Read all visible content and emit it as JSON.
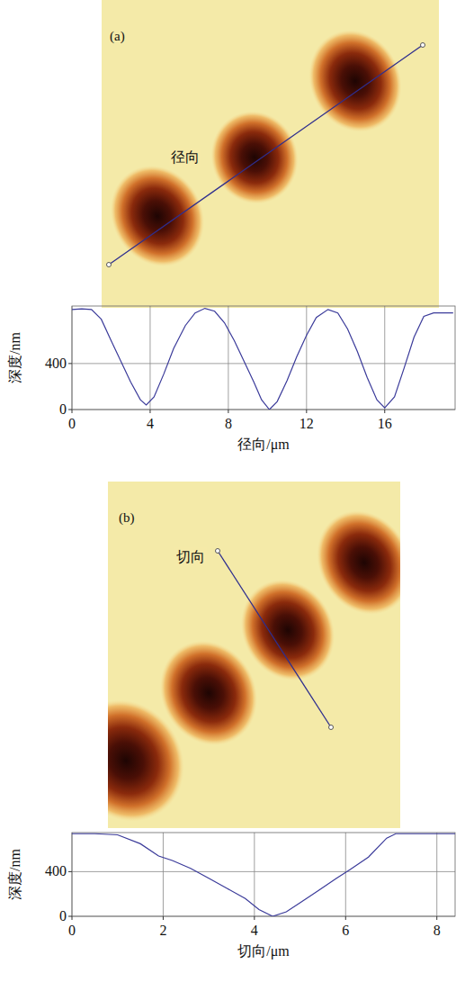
{
  "chart_data": [
    {
      "type": "line",
      "panel": "(a)",
      "annotation": "径向",
      "x_label": "径向/μm",
      "y_label": "深度/nm",
      "x": [
        0,
        0.5,
        1,
        1.5,
        2,
        2.5,
        3,
        3.5,
        3.8,
        4.2,
        4.7,
        5.2,
        5.8,
        6.3,
        6.8,
        7.3,
        7.8,
        8.3,
        8.8,
        9.3,
        9.7,
        10.1,
        10.5,
        11,
        11.5,
        12,
        12.5,
        13.1,
        13.6,
        14.1,
        14.6,
        15.1,
        15.6,
        16,
        16.5,
        17,
        17.5,
        18,
        18.5,
        19,
        19.5
      ],
      "values": [
        870,
        875,
        870,
        785,
        600,
        420,
        240,
        85,
        40,
        110,
        310,
        530,
        730,
        840,
        880,
        855,
        755,
        600,
        420,
        240,
        85,
        0,
        70,
        250,
        460,
        645,
        800,
        870,
        840,
        700,
        505,
        280,
        85,
        15,
        110,
        365,
        630,
        810,
        840,
        840,
        840
      ],
      "color": "#3b3b9a",
      "xlim": [
        0,
        19.6
      ],
      "ylim": [
        0,
        900
      ],
      "xticks": [
        0,
        4,
        8,
        12,
        16
      ],
      "yticks": [
        0,
        400
      ],
      "grid": true
    },
    {
      "type": "line",
      "panel": "(b)",
      "annotation": "切向",
      "x_label": "切向/μm",
      "y_label": "深度/nm",
      "x": [
        0,
        0.5,
        1,
        1.5,
        1.9,
        2.2,
        2.6,
        3,
        3.4,
        3.8,
        4.1,
        4.4,
        4.7,
        5,
        5.4,
        5.8,
        6.1,
        6.5,
        6.9,
        7.1,
        7.5,
        8,
        8.4
      ],
      "values": [
        740,
        740,
        730,
        650,
        540,
        500,
        430,
        340,
        250,
        160,
        60,
        0,
        40,
        120,
        230,
        340,
        420,
        530,
        700,
        740,
        740,
        740,
        740
      ],
      "color": "#3b3b9a",
      "xlim": [
        0,
        8.4
      ],
      "ylim": [
        0,
        750
      ],
      "xticks": [
        0,
        2,
        4,
        6,
        8
      ],
      "yticks": [
        0,
        400
      ],
      "grid": true
    }
  ]
}
